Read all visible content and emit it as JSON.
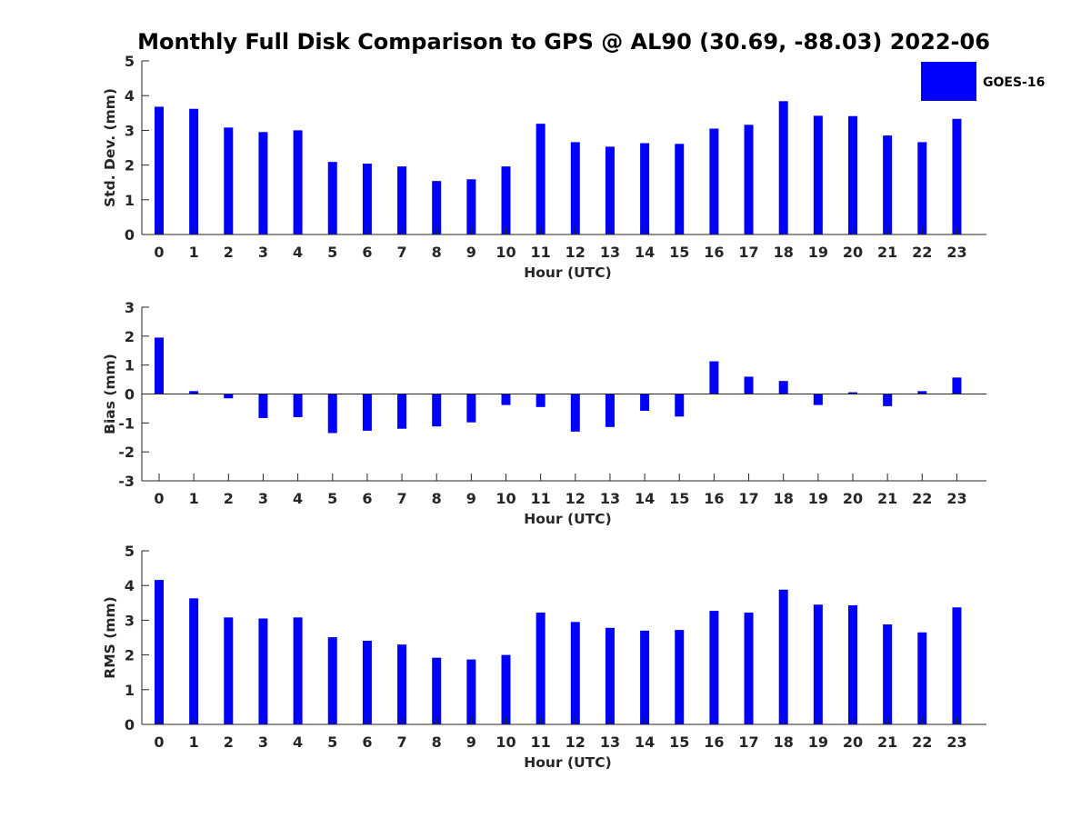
{
  "title": "Monthly Full Disk Comparison to GPS @ AL90 (30.69, -88.03) 2022-06",
  "legend": {
    "label": "GOES-16",
    "color": "#0000ff"
  },
  "chart_data": [
    {
      "type": "bar",
      "name": "std-dev",
      "series_name": "GOES-16",
      "categories": [
        "0",
        "1",
        "2",
        "3",
        "4",
        "5",
        "6",
        "7",
        "8",
        "9",
        "10",
        "11",
        "12",
        "13",
        "14",
        "15",
        "16",
        "17",
        "18",
        "19",
        "20",
        "21",
        "22",
        "23"
      ],
      "values": [
        3.68,
        3.62,
        3.08,
        2.95,
        3.0,
        2.09,
        2.04,
        1.96,
        1.54,
        1.59,
        1.96,
        3.19,
        2.66,
        2.53,
        2.63,
        2.61,
        3.05,
        3.16,
        3.84,
        3.42,
        3.41,
        2.85,
        2.66,
        3.33
      ],
      "xlabel": "Hour (UTC)",
      "ylabel": "Std. Dev. (mm)",
      "ylim": [
        0,
        5
      ],
      "yticks": [
        "0",
        "1",
        "2",
        "3",
        "4",
        "5"
      ]
    },
    {
      "type": "bar",
      "name": "bias",
      "series_name": "GOES-16",
      "categories": [
        "0",
        "1",
        "2",
        "3",
        "4",
        "5",
        "6",
        "7",
        "8",
        "9",
        "10",
        "11",
        "12",
        "13",
        "14",
        "15",
        "16",
        "17",
        "18",
        "19",
        "20",
        "21",
        "22",
        "23"
      ],
      "values": [
        1.95,
        0.1,
        -0.15,
        -0.83,
        -0.8,
        -1.35,
        -1.27,
        -1.2,
        -1.12,
        -0.98,
        -0.38,
        -0.45,
        -1.3,
        -1.14,
        -0.58,
        -0.78,
        1.13,
        0.6,
        0.45,
        -0.38,
        0.06,
        -0.42,
        0.1,
        0.57
      ],
      "xlabel": "Hour (UTC)",
      "ylabel": "Bias (mm)",
      "ylim": [
        -3,
        3
      ],
      "yticks": [
        "-3",
        "-2",
        "-1",
        "0",
        "1",
        "2",
        "3"
      ]
    },
    {
      "type": "bar",
      "name": "rms",
      "series_name": "GOES-16",
      "categories": [
        "0",
        "1",
        "2",
        "3",
        "4",
        "5",
        "6",
        "7",
        "8",
        "9",
        "10",
        "11",
        "12",
        "13",
        "14",
        "15",
        "16",
        "17",
        "18",
        "19",
        "20",
        "21",
        "22",
        "23"
      ],
      "values": [
        4.16,
        3.63,
        3.08,
        3.05,
        3.08,
        2.51,
        2.41,
        2.3,
        1.92,
        1.87,
        2.0,
        3.22,
        2.95,
        2.78,
        2.7,
        2.72,
        3.27,
        3.22,
        3.88,
        3.45,
        3.43,
        2.88,
        2.65,
        3.37
      ],
      "xlabel": "Hour (UTC)",
      "ylabel": "RMS (mm)",
      "ylim": [
        0,
        5
      ],
      "yticks": [
        "0",
        "1",
        "2",
        "3",
        "4",
        "5"
      ]
    }
  ]
}
